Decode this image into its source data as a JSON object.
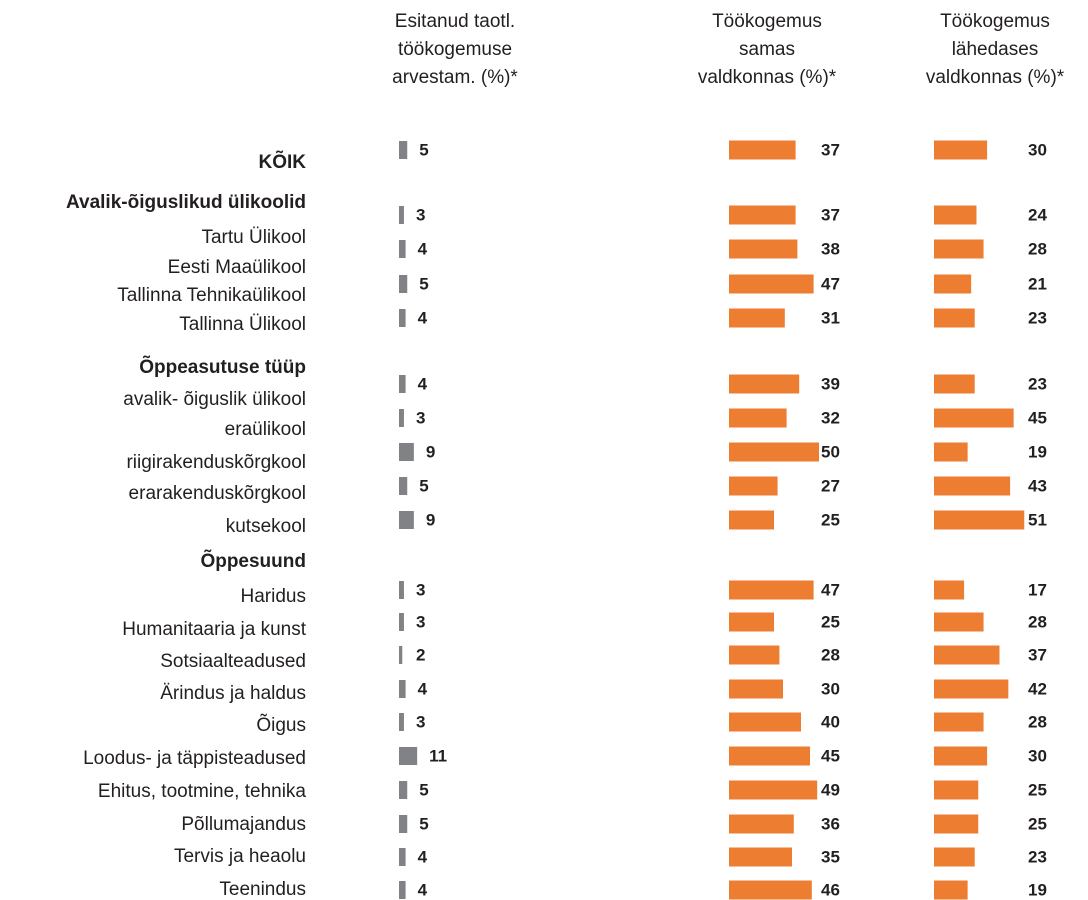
{
  "chart_data": {
    "type": "bar",
    "orientation": "horizontal",
    "categories": [
      "KÕIK",
      "Avalik-õiguslikud ülikoolid",
      "Tartu Ülikool",
      "Eesti Maaülikool",
      "Tallinna Tehnikaülikool",
      "Tallinna Ülikool",
      "Õppeasutuse tüüp",
      "avalik- õiguslik ülikool",
      "eraülikool",
      "riigirakenduskõrgkool",
      "erarakenduskõrgkool",
      "kutsekool",
      "Õppesuund",
      "Haridus",
      "Humanitaaria ja kunst",
      "Sotsiaalteadused",
      "Ärindus ja haldus",
      "Õigus",
      "Loodus- ja täppisteadused",
      "Ehitus, tootmine, tehnika",
      "Põllumajandus",
      "Tervis ja heaolu",
      "Teenindus"
    ],
    "bold_rows": [
      0,
      1,
      6,
      12
    ],
    "series": [
      {
        "name": "Esitanud taotl.\ntöökogemuse\narvestam. (%)*",
        "color": "#808285",
        "values": [
          5,
          null,
          3,
          4,
          5,
          4,
          null,
          4,
          3,
          9,
          5,
          9,
          null,
          3,
          3,
          2,
          4,
          3,
          11,
          5,
          5,
          4,
          4
        ]
      },
      {
        "name": "Töökogemus\nsamas\nvaldkonnas (%)*",
        "color": "#ed7d31",
        "values": [
          37,
          null,
          37,
          38,
          47,
          31,
          null,
          39,
          32,
          50,
          27,
          25,
          null,
          47,
          25,
          28,
          30,
          40,
          45,
          49,
          36,
          35,
          46
        ]
      },
      {
        "name": "Töökogemus\nlähedases\nvaldkonnas (%)*",
        "color": "#ed7d31",
        "values": [
          30,
          null,
          24,
          28,
          21,
          23,
          null,
          23,
          45,
          19,
          43,
          51,
          null,
          17,
          28,
          37,
          42,
          28,
          30,
          25,
          25,
          23,
          19
        ]
      }
    ]
  }
}
